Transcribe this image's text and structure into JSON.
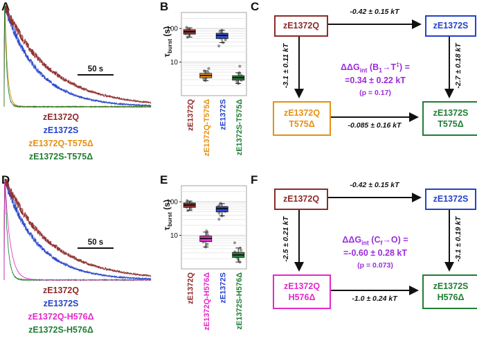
{
  "panels": {
    "a": {
      "letter": "A",
      "scalebar_label": "50 s",
      "legend": [
        {
          "text": "zE1372Q",
          "color": "#8D2A2A"
        },
        {
          "text": "zE1372S",
          "color": "#2442C8"
        },
        {
          "text": "zE1372Q-T575Δ",
          "color": "#E6900F"
        },
        {
          "text": "zE1372S-T575Δ",
          "color": "#1F7D33"
        }
      ]
    },
    "b": {
      "letter": "B",
      "ylabel_html": "τ<sub>burst</sub> (s)"
    },
    "c": {
      "letter": "C",
      "box_top_left": {
        "text": "zE1372Q",
        "color": "#8D2A2A"
      },
      "box_top_right": {
        "text": "zE1372S",
        "color": "#2442C8"
      },
      "box_bottom_left": {
        "line1": "zE1372Q",
        "line2": "T575Δ",
        "color": "#E6900F"
      },
      "box_bottom_right": {
        "line1": "zE1372S",
        "line2": "T575Δ",
        "color": "#1F7D33"
      },
      "arrow_top": "-0.42 ± 0.15 kT",
      "arrow_left": "-3.1 ± 0.11 kT",
      "arrow_right": "-2.7 ± 0.18 kT",
      "arrow_bottom": "-0.085 ± 0.16 kT",
      "ddg": {
        "line1_html": "ΔΔG<sub>int</sub> (B<sub>1</sub>→T<sup>‡</sup>) =",
        "line2": "=0.34 ± 0.22 kT",
        "p": "(p = 0.17)",
        "color": "#9C2BDA"
      }
    },
    "d": {
      "letter": "D",
      "scalebar_label": "50 s",
      "legend": [
        {
          "text": "zE1372Q",
          "color": "#8D2A2A"
        },
        {
          "text": "zE1372S",
          "color": "#2442C8"
        },
        {
          "text": "zE1372Q-H576Δ",
          "color": "#E328C8"
        },
        {
          "text": "zE1372S-H576Δ",
          "color": "#1F7D33"
        }
      ]
    },
    "e": {
      "letter": "E",
      "ylabel_html": "τ<sub>burst</sub> (s)"
    },
    "f": {
      "letter": "F",
      "box_top_left": {
        "text": "zE1372Q",
        "color": "#8D2A2A"
      },
      "box_top_right": {
        "text": "zE1372S",
        "color": "#2442C8"
      },
      "box_bottom_left": {
        "line1": "zE1372Q",
        "line2": "H576Δ",
        "color": "#E328C8"
      },
      "box_bottom_right": {
        "line1": "zE1372S",
        "line2": "H576Δ",
        "color": "#1F7D33"
      },
      "arrow_top": "-0.42 ± 0.15 kT",
      "arrow_left": "-2.5 ± 0.21 kT",
      "arrow_right": "-3.1 ± 0.19 kT",
      "arrow_bottom": "-1.0 ± 0.24 kT",
      "ddg": {
        "line1_html": "ΔΔG<sub>int</sub> (C<sub>f</sub>→O) =",
        "line2": "=-0.60 ± 0.28 kT",
        "p": "(p = 0.073)",
        "color": "#9C2BDA"
      }
    }
  },
  "chart_data": [
    {
      "type": "line",
      "panel": "A",
      "dom_id": "chart-A",
      "description": "normalized macroscopic current decay traces",
      "duration_s": 250,
      "time_scalebar": "50 s",
      "series": [
        {
          "name": "zE1372S",
          "color": "#2442C8",
          "tau": 55,
          "noise": 0.035
        },
        {
          "name": "zE1372Q",
          "color": "#8D2A2A",
          "tau": 78,
          "noise": 0.035
        },
        {
          "name": "zE1372Q-T575Δ",
          "color": "#E6900F",
          "tau": 4.5,
          "noise": 0.025
        },
        {
          "name": "zE1372S-T575Δ",
          "color": "#1F7D33",
          "tau": 3.5,
          "noise": 0.025
        }
      ]
    },
    {
      "type": "box",
      "panel": "B",
      "dom_id": "chart-B",
      "ylabel": "τburst (s)",
      "yscale": "log",
      "ylim": [
        1,
        300
      ],
      "ytick_labels": [
        "100",
        "10"
      ],
      "ytick_values": [
        100,
        10
      ],
      "categories": [
        "zE1372Q",
        "zE1372Q-T575Δ",
        "zE1372S",
        "zE1372S-T575Δ"
      ],
      "group_colors": [
        "#8D2A2A",
        "#E6900F",
        "#2442C8",
        "#1F7D33"
      ],
      "groups": [
        {
          "median": 80,
          "q1": 68,
          "q3": 92,
          "lo": 55,
          "hi": 105,
          "points": [
            55,
            62,
            70,
            75,
            78,
            82,
            88,
            95,
            100,
            108
          ]
        },
        {
          "median": 4.0,
          "q1": 3.4,
          "q3": 4.6,
          "lo": 2.8,
          "hi": 5.5,
          "points": [
            2.8,
            3.1,
            3.4,
            3.7,
            4.0,
            4.2,
            4.5,
            4.9,
            5.4,
            6.4
          ]
        },
        {
          "median": 62,
          "q1": 50,
          "q3": 72,
          "lo": 38,
          "hi": 88,
          "points": [
            30,
            38,
            46,
            52,
            58,
            63,
            68,
            74,
            82,
            90
          ]
        },
        {
          "median": 3.4,
          "q1": 2.9,
          "q3": 3.9,
          "lo": 2.3,
          "hi": 4.8,
          "points": [
            2.3,
            2.6,
            2.9,
            3.2,
            3.5,
            3.7,
            4.0,
            4.4,
            4.8,
            7.5
          ]
        }
      ]
    },
    {
      "type": "line",
      "panel": "D",
      "dom_id": "chart-D",
      "description": "normalized macroscopic current decay traces",
      "duration_s": 250,
      "time_scalebar": "50 s",
      "series": [
        {
          "name": "zE1372S",
          "color": "#2442C8",
          "tau": 55,
          "noise": 0.035
        },
        {
          "name": "zE1372Q",
          "color": "#8D2A2A",
          "tau": 78,
          "noise": 0.035
        },
        {
          "name": "zE1372S-H576Δ",
          "color": "#1F7D33",
          "tau": 5,
          "noise": 0.028
        },
        {
          "name": "zE1372Q-H576Δ",
          "color": "#E328C8",
          "tau": 9,
          "noise": 0.007
        }
      ]
    },
    {
      "type": "box",
      "panel": "E",
      "dom_id": "chart-E",
      "ylabel": "τburst (s)",
      "yscale": "log",
      "ylim": [
        1,
        300
      ],
      "ytick_labels": [
        "100",
        "10"
      ],
      "ytick_values": [
        100,
        10
      ],
      "categories": [
        "zE1372Q",
        "zE1372Q-H576Δ",
        "zE1372S",
        "zE1372S-H576Δ"
      ],
      "group_colors": [
        "#8D2A2A",
        "#E328C8",
        "#2442C8",
        "#1F7D33"
      ],
      "groups": [
        {
          "median": 80,
          "q1": 68,
          "q3": 92,
          "lo": 55,
          "hi": 105,
          "points": [
            55,
            62,
            70,
            75,
            78,
            82,
            88,
            95,
            100,
            108
          ]
        },
        {
          "median": 8.0,
          "q1": 6.5,
          "q3": 9.5,
          "lo": 4.5,
          "hi": 12.5,
          "points": [
            4.5,
            5.4,
            6.3,
            7.0,
            7.6,
            8.2,
            9.0,
            10.0,
            11.2,
            13.5
          ]
        },
        {
          "median": 62,
          "q1": 50,
          "q3": 72,
          "lo": 38,
          "hi": 88,
          "points": [
            30,
            38,
            46,
            52,
            58,
            63,
            68,
            74,
            82,
            90
          ]
        },
        {
          "median": 2.6,
          "q1": 2.2,
          "q3": 3.1,
          "lo": 1.6,
          "hi": 4.2,
          "points": [
            1.6,
            1.9,
            2.2,
            2.4,
            2.7,
            2.9,
            3.2,
            3.6,
            4.2,
            6.0
          ]
        }
      ]
    }
  ]
}
